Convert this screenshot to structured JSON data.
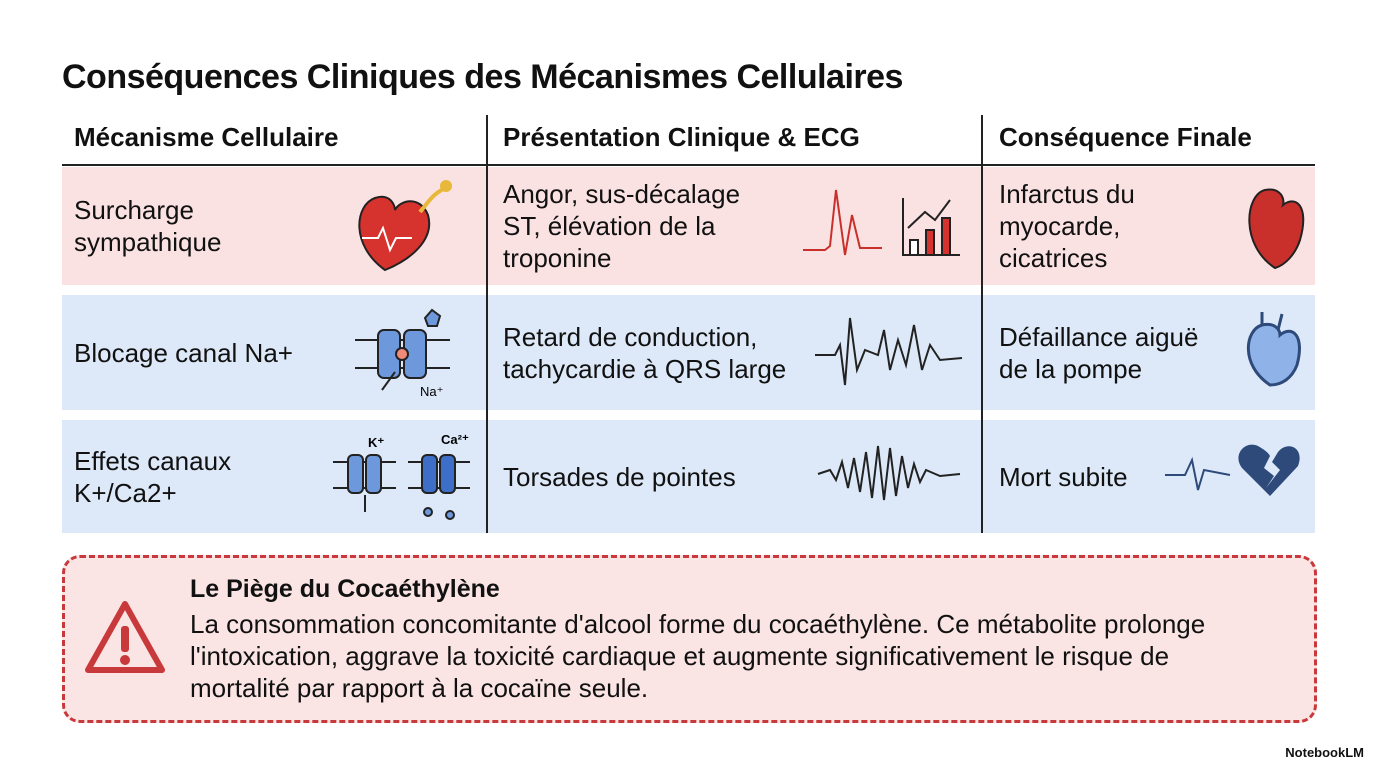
{
  "title": "Conséquences Cliniques des Mécanismes Cellulaires",
  "table": {
    "headers": [
      "Mécanisme Cellulaire",
      "Présentation Clinique & ECG",
      "Conséquence Finale"
    ],
    "rows": [
      {
        "mechanism": "Surcharge sympathique",
        "presentation": "Angor, sus-décalage ST, élévation de la troponine",
        "consequence": "Infarctus du myocarde, cicatrices"
      },
      {
        "mechanism": "Blocage canal Na+",
        "presentation": "Retard de conduction, tachycardie à QRS large",
        "consequence": "Défaillance aiguë de la pompe",
        "icon_labels": [
          "Na⁺"
        ]
      },
      {
        "mechanism": "Effets canaux K+/Ca2+",
        "presentation": "Torsades de pointes",
        "consequence": "Mort subite",
        "icon_labels": [
          "K⁺",
          "Ca²⁺"
        ]
      }
    ]
  },
  "callout": {
    "title": "Le Piège du Cocaéthylène",
    "text": "La consommation concomitante d'alcool forme du cocaéthylène. Ce métabolite prolonge l'intoxication, aggrave la toxicité cardiaque et augmente significativement le risque de mortalité par rapport à la cocaïne seule."
  },
  "footer": {
    "brand": "NotebookLM"
  }
}
